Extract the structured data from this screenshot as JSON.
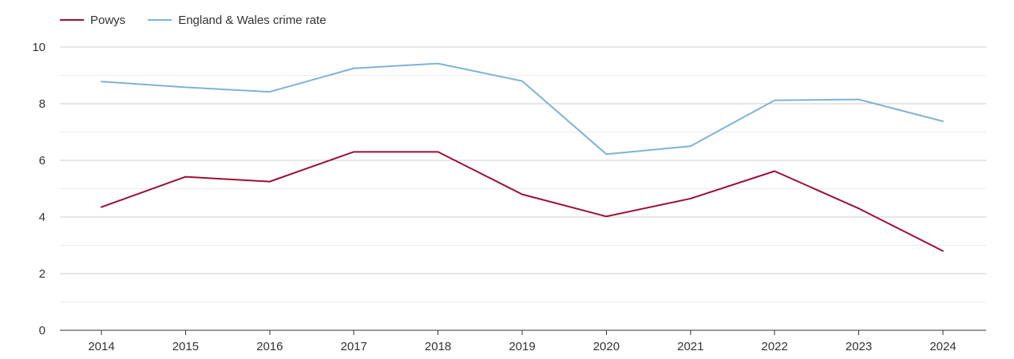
{
  "chart_data": {
    "type": "line",
    "title": "",
    "xlabel": "",
    "ylabel": "",
    "categories": [
      "2014",
      "2015",
      "2016",
      "2017",
      "2018",
      "2019",
      "2020",
      "2021",
      "2022",
      "2023",
      "2024"
    ],
    "ylim": [
      0,
      10
    ],
    "y_ticks": [
      "0",
      "2",
      "4",
      "6",
      "8",
      "10"
    ],
    "grid": true,
    "legend_position": "top-left",
    "series": [
      {
        "name": "Powys",
        "color": "#9b1035",
        "values": [
          4.35,
          5.42,
          5.25,
          6.3,
          6.3,
          4.8,
          4.02,
          4.65,
          5.62,
          4.3,
          2.8
        ]
      },
      {
        "name": "England & Wales crime rate",
        "color": "#7fb3d5",
        "values": [
          8.78,
          8.58,
          8.42,
          9.25,
          9.42,
          8.8,
          6.22,
          6.5,
          8.12,
          8.15,
          7.38
        ]
      }
    ]
  }
}
